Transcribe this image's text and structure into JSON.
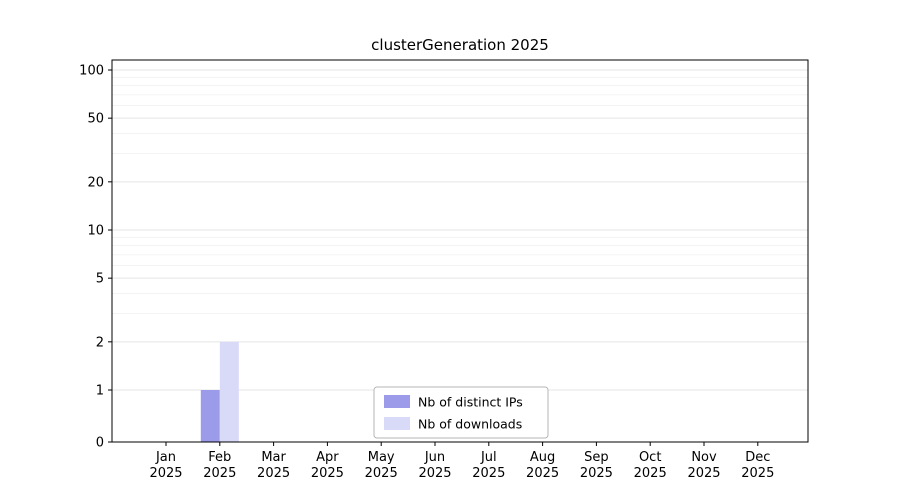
{
  "chart_data": {
    "type": "bar",
    "title": "clusterGeneration 2025",
    "categories": [
      "Jan 2025",
      "Feb 2025",
      "Mar 2025",
      "Apr 2025",
      "May 2025",
      "Jun 2025",
      "Jul 2025",
      "Aug 2025",
      "Sep 2025",
      "Oct 2025",
      "Nov 2025",
      "Dec 2025"
    ],
    "series": [
      {
        "name": "Nb of distinct IPs",
        "color": "#9b9bea",
        "values": [
          0,
          1,
          0,
          0,
          0,
          0,
          0,
          0,
          0,
          0,
          0,
          0
        ]
      },
      {
        "name": "Nb of downloads",
        "color": "#d9d9f8",
        "values": [
          0,
          2,
          0,
          0,
          0,
          0,
          0,
          0,
          0,
          0,
          0,
          0
        ]
      }
    ],
    "yscale": "symlog",
    "y_ticks": [
      0,
      1,
      2,
      5,
      10,
      20,
      50,
      100
    ],
    "ylim": [
      0,
      115
    ],
    "grid": "horizontal",
    "legend_position": "bottom-center-inside",
    "colors": {
      "axis": "#000000",
      "major_grid": "#e4e4e4",
      "minor_grid": "#f3f3f3",
      "legend_border": "#b5b5b5"
    }
  }
}
